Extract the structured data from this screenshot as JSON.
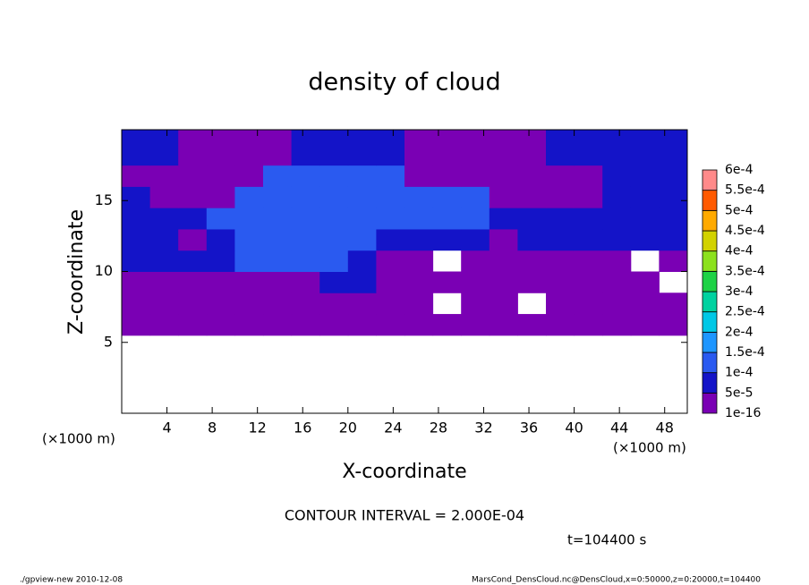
{
  "chart_data": {
    "type": "contour",
    "title": "density of cloud",
    "x_label": "X-coordinate",
    "y_label": "Z-coordinate",
    "x_unit_left": "(×1000 m)",
    "x_unit_right": "(×1000 m)",
    "contour_interval": "CONTOUR INTERVAL = 2.000E-04",
    "time_label": "t=104400 s",
    "footer_left": "./gpview-new  2010-12-08",
    "footer_right": "MarsCond_DensCloud.nc@DensCloud,x=0:50000,z=0:20000,t=104400",
    "xlim": [
      0,
      50
    ],
    "ylim": [
      0,
      20
    ],
    "xticks": [
      4,
      8,
      12,
      16,
      20,
      24,
      28,
      32,
      36,
      40,
      44,
      48
    ],
    "yticks": [
      5,
      10,
      15
    ],
    "x_bins": [
      0,
      2.5,
      5,
      7.5,
      10,
      12.5,
      15,
      17.5,
      20,
      22.5,
      25,
      27.5,
      30,
      32.5,
      35,
      37.5,
      40,
      42.5,
      45,
      47.5,
      50
    ],
    "z_bins": [
      0,
      5.5,
      7,
      8.5,
      10,
      11.5,
      13,
      14.5,
      16,
      17.5,
      20
    ],
    "levels": [
      {
        "value": 1e-16,
        "label": "1e-16"
      },
      {
        "value": 5e-05,
        "label": "5e-5"
      },
      {
        "value": 0.0001,
        "label": "1e-4"
      },
      {
        "value": 0.00015,
        "label": "1.5e-4"
      },
      {
        "value": 0.0002,
        "label": "2e-4"
      },
      {
        "value": 0.00025,
        "label": "2.5e-4"
      },
      {
        "value": 0.0003,
        "label": "3e-4"
      },
      {
        "value": 0.00035,
        "label": "3.5e-4"
      },
      {
        "value": 0.0004,
        "label": "4e-4"
      },
      {
        "value": 0.00045,
        "label": "4.5e-4"
      },
      {
        "value": 0.0005,
        "label": "5e-4"
      },
      {
        "value": 0.00055,
        "label": "5.5e-4"
      },
      {
        "value": 0.0006,
        "label": "6e-4"
      }
    ],
    "colors": [
      "#7a00b4",
      "#1414c8",
      "#2a5af0",
      "#1e96ff",
      "#00c8e6",
      "#00d2a0",
      "#1ed246",
      "#8ce11e",
      "#d2d200",
      "#ffaa00",
      "#ff5a00",
      "#ff8a8a"
    ],
    "values": [
      [
        null,
        null,
        null,
        null,
        null,
        null,
        null,
        null,
        null,
        null,
        null,
        null,
        null,
        null,
        null,
        null,
        null,
        null,
        null,
        null
      ],
      [
        3e-05,
        3e-05,
        3e-05,
        3e-05,
        3e-05,
        3e-05,
        3e-05,
        3e-05,
        3e-05,
        3e-05,
        3e-05,
        3e-05,
        3e-05,
        3e-05,
        3e-05,
        3e-05,
        3e-05,
        3e-05,
        3e-05,
        3e-05
      ],
      [
        3e-05,
        3e-05,
        3e-05,
        3e-05,
        3e-05,
        3e-05,
        3e-05,
        3e-05,
        3e-05,
        3e-05,
        3e-05,
        null,
        3e-05,
        3e-05,
        null,
        3e-05,
        3e-05,
        3e-05,
        3e-05,
        3e-05
      ],
      [
        3e-05,
        3e-05,
        3e-05,
        3e-05,
        3e-05,
        3e-05,
        3e-05,
        7e-05,
        7e-05,
        3e-05,
        3e-05,
        3e-05,
        3e-05,
        3e-05,
        3e-05,
        3e-05,
        3e-05,
        3e-05,
        3e-05,
        null
      ],
      [
        7e-05,
        7e-05,
        7e-05,
        7e-05,
        0.00012,
        0.00012,
        0.00012,
        0.00012,
        7e-05,
        3e-05,
        3e-05,
        null,
        3e-05,
        3e-05,
        3e-05,
        3e-05,
        3e-05,
        3e-05,
        null,
        3e-05
      ],
      [
        7e-05,
        7e-05,
        3e-05,
        7e-05,
        0.00012,
        0.00012,
        0.00012,
        0.00012,
        0.00012,
        7e-05,
        7e-05,
        7e-05,
        7e-05,
        3e-05,
        7e-05,
        7e-05,
        7e-05,
        7e-05,
        7e-05,
        7e-05
      ],
      [
        7e-05,
        7e-05,
        7e-05,
        0.00012,
        0.00012,
        0.00012,
        0.00012,
        0.00012,
        0.00012,
        0.00012,
        0.00012,
        0.00012,
        0.00012,
        7e-05,
        7e-05,
        7e-05,
        7e-05,
        7e-05,
        7e-05,
        7e-05
      ],
      [
        7e-05,
        3e-05,
        3e-05,
        3e-05,
        0.00012,
        0.00012,
        0.00012,
        0.00012,
        0.00012,
        0.00012,
        0.00012,
        0.00012,
        0.00012,
        3e-05,
        3e-05,
        3e-05,
        3e-05,
        7e-05,
        7e-05,
        7e-05
      ],
      [
        3e-05,
        3e-05,
        3e-05,
        3e-05,
        3e-05,
        0.00012,
        0.00012,
        0.00012,
        0.00012,
        0.00012,
        3e-05,
        3e-05,
        3e-05,
        3e-05,
        3e-05,
        3e-05,
        3e-05,
        7e-05,
        7e-05,
        7e-05
      ],
      [
        7e-05,
        7e-05,
        3e-05,
        3e-05,
        3e-05,
        3e-05,
        7e-05,
        7e-05,
        7e-05,
        7e-05,
        3e-05,
        3e-05,
        3e-05,
        3e-05,
        3e-05,
        7e-05,
        7e-05,
        7e-05,
        7e-05,
        7e-05
      ]
    ]
  }
}
